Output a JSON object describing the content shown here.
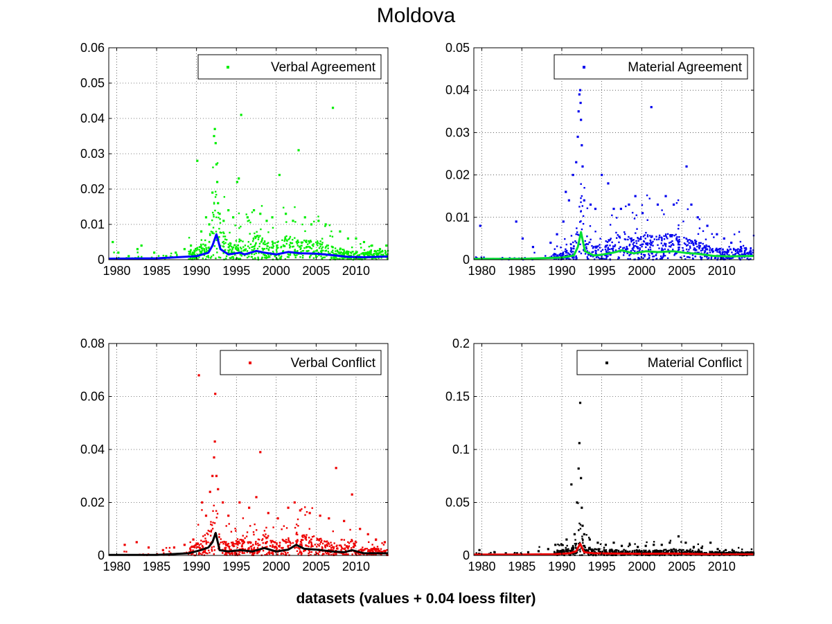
{
  "figure": {
    "title": "Moldova",
    "footer": "datasets (values + 0.04 loess filter)"
  },
  "chart_data": [
    {
      "type": "scatter",
      "legend": "Verbal Agreement",
      "legend_position": "top-right",
      "grid": true,
      "xlim": [
        1979,
        2014
      ],
      "ylim": [
        0,
        0.06
      ],
      "xticks": [
        1980,
        1985,
        1990,
        1995,
        2000,
        2005,
        2010
      ],
      "yticks": [
        0,
        0.01,
        0.02,
        0.03,
        0.04,
        0.05,
        0.06
      ],
      "ytick_labels": [
        "0",
        "0.01",
        "0.02",
        "0.03",
        "0.04",
        "0.05",
        "0.06"
      ],
      "point_color": "#00ee00",
      "line_color": "#0000ff",
      "points": [
        [
          1979.5,
          0.005
        ],
        [
          1980.2,
          0.002
        ],
        [
          1981.5,
          0.001
        ],
        [
          1982.6,
          0.003
        ],
        [
          1983.1,
          0.004
        ],
        [
          1984.7,
          0.002
        ],
        [
          1986.2,
          0.001
        ],
        [
          1987.4,
          0.002
        ],
        [
          1988.5,
          0.003
        ],
        [
          1989.3,
          0.004
        ],
        [
          1990.1,
          0.028
        ],
        [
          1990.6,
          0.008
        ],
        [
          1991.2,
          0.012
        ],
        [
          1991.6,
          0.01
        ],
        [
          1992.0,
          0.019
        ],
        [
          1992.2,
          0.035
        ],
        [
          1992.3,
          0.037
        ],
        [
          1992.4,
          0.033
        ],
        [
          1992.5,
          0.027
        ],
        [
          1992.6,
          0.022
        ],
        [
          1992.7,
          0.016
        ],
        [
          1992.9,
          0.013
        ],
        [
          1993.4,
          0.011
        ],
        [
          1994.0,
          0.014
        ],
        [
          1994.6,
          0.012
        ],
        [
          1995.1,
          0.022
        ],
        [
          1995.3,
          0.023
        ],
        [
          1995.6,
          0.041
        ],
        [
          1996.4,
          0.012
        ],
        [
          1997.2,
          0.014
        ],
        [
          1998.0,
          0.013
        ],
        [
          1998.8,
          0.011
        ],
        [
          1999.5,
          0.012
        ],
        [
          2000.4,
          0.024
        ],
        [
          2001.2,
          0.013
        ],
        [
          2002.1,
          0.011
        ],
        [
          2002.8,
          0.031
        ],
        [
          2003.6,
          0.012
        ],
        [
          2004.4,
          0.01
        ],
        [
          2005.3,
          0.011
        ],
        [
          2006.2,
          0.01
        ],
        [
          2007.1,
          0.043
        ],
        [
          2008.0,
          0.008
        ],
        [
          2009.0,
          0.006
        ],
        [
          2010.0,
          0.006
        ],
        [
          2011.0,
          0.005
        ],
        [
          2012.0,
          0.004
        ],
        [
          2013.0,
          0.003
        ],
        [
          2013.8,
          0.004
        ]
      ],
      "line": [
        [
          1979,
          0.0003
        ],
        [
          1985,
          0.0004
        ],
        [
          1990,
          0.001
        ],
        [
          1991.5,
          0.002
        ],
        [
          1992.0,
          0.004
        ],
        [
          1992.5,
          0.0072
        ],
        [
          1993.0,
          0.003
        ],
        [
          1994.0,
          0.0015
        ],
        [
          1995.5,
          0.002
        ],
        [
          1996.0,
          0.0015
        ],
        [
          1997.5,
          0.0025
        ],
        [
          1998.5,
          0.002
        ],
        [
          2000.0,
          0.0015
        ],
        [
          2001.5,
          0.0022
        ],
        [
          2003.0,
          0.0018
        ],
        [
          2005.0,
          0.0017
        ],
        [
          2007.0,
          0.0013
        ],
        [
          2009.0,
          0.0008
        ],
        [
          2011.0,
          0.0007
        ],
        [
          2014,
          0.0009
        ]
      ]
    },
    {
      "type": "scatter",
      "legend": "Material Agreement",
      "legend_position": "top-right",
      "grid": true,
      "xlim": [
        1979,
        2014
      ],
      "ylim": [
        0,
        0.05
      ],
      "xticks": [
        1980,
        1985,
        1990,
        1995,
        2000,
        2005,
        2010
      ],
      "yticks": [
        0,
        0.01,
        0.02,
        0.03,
        0.04,
        0.05
      ],
      "ytick_labels": [
        "0",
        "0.01",
        "0.02",
        "0.03",
        "0.04",
        "0.05"
      ],
      "point_color": "#0000ee",
      "line_color": "#00dd33",
      "points": [
        [
          1979.8,
          0.008
        ],
        [
          1984.3,
          0.009
        ],
        [
          1985.1,
          0.005
        ],
        [
          1986.4,
          0.003
        ],
        [
          1988.6,
          0.004
        ],
        [
          1989.4,
          0.006
        ],
        [
          1990.2,
          0.009
        ],
        [
          1990.5,
          0.016
        ],
        [
          1990.9,
          0.014
        ],
        [
          1991.4,
          0.02
        ],
        [
          1991.8,
          0.023
        ],
        [
          1992.0,
          0.029
        ],
        [
          1992.1,
          0.035
        ],
        [
          1992.2,
          0.039
        ],
        [
          1992.3,
          0.04
        ],
        [
          1992.35,
          0.037
        ],
        [
          1992.4,
          0.033
        ],
        [
          1992.5,
          0.027
        ],
        [
          1992.6,
          0.022
        ],
        [
          1992.8,
          0.014
        ],
        [
          1993.6,
          0.013
        ],
        [
          1994.2,
          0.012
        ],
        [
          1995.0,
          0.02
        ],
        [
          1995.8,
          0.018
        ],
        [
          1996.5,
          0.012
        ],
        [
          1997.4,
          0.012
        ],
        [
          1998.4,
          0.013
        ],
        [
          1999.2,
          0.015
        ],
        [
          2000.1,
          0.011
        ],
        [
          2001.2,
          0.036
        ],
        [
          2002.0,
          0.013
        ],
        [
          2003.0,
          0.015
        ],
        [
          2004.0,
          0.013
        ],
        [
          2005.6,
          0.022
        ],
        [
          2006.2,
          0.013
        ],
        [
          2007.0,
          0.01
        ],
        [
          2008.2,
          0.008
        ],
        [
          2009.4,
          0.006
        ],
        [
          2010.3,
          0.005
        ],
        [
          2011.2,
          0.004
        ],
        [
          2012.4,
          0.003
        ],
        [
          2013.6,
          0.002
        ]
      ],
      "line": [
        [
          1979,
          0.0002
        ],
        [
          1985,
          0.0002
        ],
        [
          1990,
          0.0005
        ],
        [
          1991.5,
          0.001
        ],
        [
          1992.0,
          0.003
        ],
        [
          1992.4,
          0.0065
        ],
        [
          1992.9,
          0.002
        ],
        [
          1994.0,
          0.001
        ],
        [
          1995.0,
          0.0012
        ],
        [
          1996.5,
          0.0017
        ],
        [
          1997.5,
          0.0022
        ],
        [
          1999.0,
          0.0015
        ],
        [
          2000.5,
          0.002
        ],
        [
          2002.0,
          0.0018
        ],
        [
          2004.0,
          0.002
        ],
        [
          2005.5,
          0.0016
        ],
        [
          2007.0,
          0.0014
        ],
        [
          2009.0,
          0.0009
        ],
        [
          2011.0,
          0.0008
        ],
        [
          2014,
          0.0009
        ]
      ]
    },
    {
      "type": "scatter",
      "legend": "Verbal Conflict",
      "legend_position": "top-right",
      "grid": true,
      "xlim": [
        1979,
        2014
      ],
      "ylim": [
        0,
        0.08
      ],
      "xticks": [
        1980,
        1985,
        1990,
        1995,
        2000,
        2005,
        2010
      ],
      "yticks": [
        0,
        0.02,
        0.04,
        0.06,
        0.08
      ],
      "ytick_labels": [
        "0",
        "0.02",
        "0.04",
        "0.06",
        "0.08"
      ],
      "point_color": "#ee0000",
      "line_color": "#000000",
      "points": [
        [
          1981.0,
          0.004
        ],
        [
          1982.5,
          0.005
        ],
        [
          1984.0,
          0.003
        ],
        [
          1985.8,
          0.002
        ],
        [
          1987.2,
          0.003
        ],
        [
          1988.5,
          0.004
        ],
        [
          1989.6,
          0.006
        ],
        [
          1990.3,
          0.068
        ],
        [
          1990.7,
          0.02
        ],
        [
          1991.2,
          0.015
        ],
        [
          1991.7,
          0.024
        ],
        [
          1992.0,
          0.03
        ],
        [
          1992.2,
          0.037
        ],
        [
          1992.3,
          0.043
        ],
        [
          1992.35,
          0.061
        ],
        [
          1992.5,
          0.03
        ],
        [
          1992.7,
          0.025
        ],
        [
          1993.3,
          0.02
        ],
        [
          1994.0,
          0.015
        ],
        [
          1995.4,
          0.02
        ],
        [
          1996.6,
          0.018
        ],
        [
          1997.5,
          0.022
        ],
        [
          1998.0,
          0.039
        ],
        [
          1999.0,
          0.016
        ],
        [
          2000.2,
          0.014
        ],
        [
          2001.5,
          0.018
        ],
        [
          2002.3,
          0.02
        ],
        [
          2003.0,
          0.017
        ],
        [
          2004.2,
          0.016
        ],
        [
          2005.5,
          0.015
        ],
        [
          2006.6,
          0.014
        ],
        [
          2007.5,
          0.033
        ],
        [
          2008.5,
          0.013
        ],
        [
          2009.5,
          0.023
        ],
        [
          2010.5,
          0.01
        ],
        [
          2011.5,
          0.008
        ],
        [
          2012.5,
          0.006
        ],
        [
          2013.6,
          0.005
        ]
      ],
      "line": [
        [
          1979,
          0.0002
        ],
        [
          1985,
          0.0002
        ],
        [
          1989,
          0.0008
        ],
        [
          1990.5,
          0.002
        ],
        [
          1991.5,
          0.003
        ],
        [
          1992.0,
          0.005
        ],
        [
          1992.4,
          0.0085
        ],
        [
          1992.9,
          0.002
        ],
        [
          1994.0,
          0.0015
        ],
        [
          1995.5,
          0.002
        ],
        [
          1997.0,
          0.0015
        ],
        [
          1998.5,
          0.0028
        ],
        [
          2000.0,
          0.0015
        ],
        [
          2001.5,
          0.0022
        ],
        [
          2002.5,
          0.004
        ],
        [
          2003.5,
          0.0025
        ],
        [
          2005.0,
          0.0022
        ],
        [
          2007.0,
          0.0015
        ],
        [
          2008.5,
          0.0012
        ],
        [
          2009.5,
          0.002
        ],
        [
          2011.0,
          0.0008
        ],
        [
          2014,
          0.0008
        ]
      ]
    },
    {
      "type": "scatter",
      "legend": "Material Conflict",
      "legend_position": "top-right",
      "grid": true,
      "xlim": [
        1979,
        2014
      ],
      "ylim": [
        0,
        0.2
      ],
      "xticks": [
        1980,
        1985,
        1990,
        1995,
        2000,
        2005,
        2010
      ],
      "yticks": [
        0,
        0.05,
        0.1,
        0.15,
        0.2
      ],
      "ytick_labels": [
        "0",
        "0.05",
        "0.1",
        "0.15",
        "0.2"
      ],
      "point_color": "#000000",
      "line_color": "#ee0000",
      "points": [
        [
          1979.7,
          0.005
        ],
        [
          1981.6,
          0.003
        ],
        [
          1983.0,
          0.002
        ],
        [
          1984.4,
          0.002
        ],
        [
          1985.8,
          0.003
        ],
        [
          1987.1,
          0.004
        ],
        [
          1988.3,
          0.006
        ],
        [
          1989.2,
          0.01
        ],
        [
          1990.0,
          0.01
        ],
        [
          1990.6,
          0.015
        ],
        [
          1991.2,
          0.067
        ],
        [
          1991.6,
          0.02
        ],
        [
          1991.9,
          0.05
        ],
        [
          1992.1,
          0.082
        ],
        [
          1992.2,
          0.106
        ],
        [
          1992.3,
          0.144
        ],
        [
          1992.4,
          0.073
        ],
        [
          1992.5,
          0.045
        ],
        [
          1992.6,
          0.028
        ],
        [
          1992.8,
          0.02
        ],
        [
          1993.5,
          0.015
        ],
        [
          1994.5,
          0.012
        ],
        [
          1995.5,
          0.01
        ],
        [
          1996.5,
          0.012
        ],
        [
          1997.5,
          0.009
        ],
        [
          1998.5,
          0.01
        ],
        [
          1999.5,
          0.008
        ],
        [
          2000.5,
          0.009
        ],
        [
          2001.5,
          0.01
        ],
        [
          2002.5,
          0.01
        ],
        [
          2003.5,
          0.012
        ],
        [
          2004.6,
          0.018
        ],
        [
          2005.5,
          0.012
        ],
        [
          2006.5,
          0.008
        ],
        [
          2007.5,
          0.007
        ],
        [
          2008.6,
          0.012
        ],
        [
          2009.5,
          0.006
        ],
        [
          2010.5,
          0.005
        ],
        [
          2011.5,
          0.004
        ],
        [
          2012.5,
          0.003
        ],
        [
          2013.7,
          0.003
        ]
      ],
      "line": [
        [
          1979,
          0.0008
        ],
        [
          1985,
          0.0008
        ],
        [
          1989,
          0.0012
        ],
        [
          1991.0,
          0.002
        ],
        [
          1991.8,
          0.004
        ],
        [
          1992.3,
          0.011
        ],
        [
          1992.8,
          0.003
        ],
        [
          1994.0,
          0.002
        ],
        [
          1996.0,
          0.0018
        ],
        [
          2000.0,
          0.0016
        ],
        [
          2004.0,
          0.0018
        ],
        [
          2008.0,
          0.0012
        ],
        [
          2011.0,
          0.001
        ],
        [
          2014,
          0.001
        ]
      ]
    }
  ]
}
